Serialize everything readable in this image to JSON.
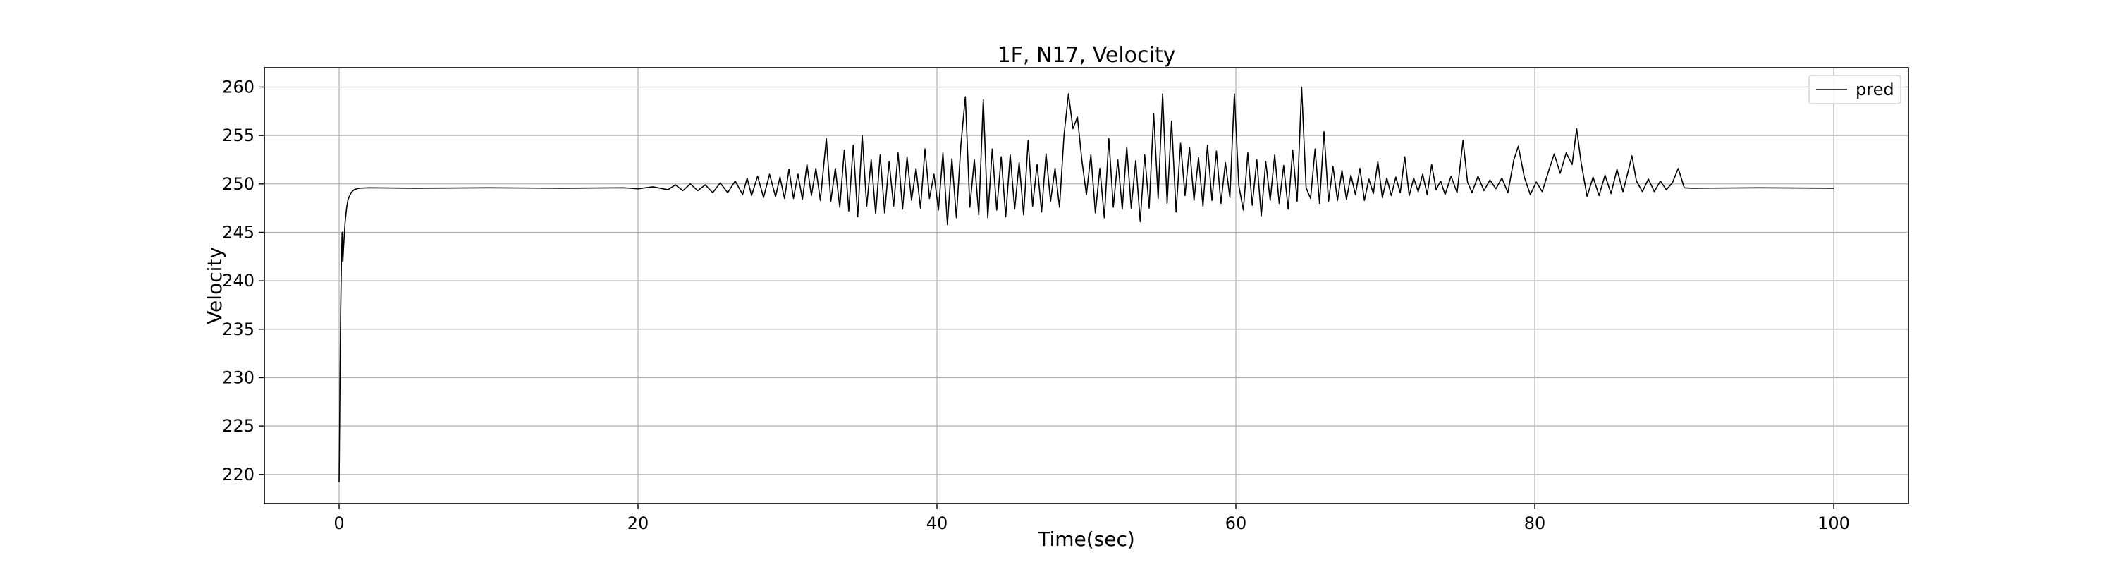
{
  "chart_data": {
    "type": "line",
    "title": "1F, N17, Velocity",
    "xlabel": "Time(sec)",
    "ylabel": "Velocity",
    "xlim": [
      -5,
      105
    ],
    "ylim": [
      217,
      262
    ],
    "x_ticks": [
      0,
      20,
      40,
      60,
      80,
      100
    ],
    "y_ticks": [
      220,
      225,
      230,
      235,
      240,
      245,
      250,
      255,
      260
    ],
    "grid": true,
    "legend": {
      "position": "top-right",
      "entries": [
        "pred"
      ]
    },
    "series": [
      {
        "name": "pred",
        "color": "#000000",
        "points": [
          [
            0.0,
            219.2
          ],
          [
            0.05,
            228.0
          ],
          [
            0.1,
            236.5
          ],
          [
            0.15,
            241.5
          ],
          [
            0.2,
            245.0
          ],
          [
            0.25,
            242.0
          ],
          [
            0.3,
            243.5
          ],
          [
            0.4,
            246.0
          ],
          [
            0.5,
            247.5
          ],
          [
            0.6,
            248.4
          ],
          [
            0.8,
            249.1
          ],
          [
            1.0,
            249.4
          ],
          [
            1.3,
            249.55
          ],
          [
            2.0,
            249.6
          ],
          [
            5.0,
            249.55
          ],
          [
            10.0,
            249.6
          ],
          [
            15.0,
            249.55
          ],
          [
            19.0,
            249.6
          ],
          [
            20.0,
            249.5
          ],
          [
            21.0,
            249.7
          ],
          [
            22.0,
            249.4
          ],
          [
            22.5,
            249.9
          ],
          [
            23.0,
            249.3
          ],
          [
            23.5,
            250.0
          ],
          [
            24.0,
            249.3
          ],
          [
            24.5,
            249.9
          ],
          [
            25.0,
            249.1
          ],
          [
            25.5,
            250.1
          ],
          [
            26.0,
            249.1
          ],
          [
            26.5,
            250.3
          ],
          [
            27.0,
            248.9
          ],
          [
            27.3,
            250.6
          ],
          [
            27.6,
            248.8
          ],
          [
            28.0,
            250.8
          ],
          [
            28.4,
            248.6
          ],
          [
            28.8,
            251.0
          ],
          [
            29.2,
            248.7
          ],
          [
            29.5,
            250.7
          ],
          [
            29.8,
            248.5
          ],
          [
            30.1,
            251.5
          ],
          [
            30.4,
            248.5
          ],
          [
            30.7,
            251.0
          ],
          [
            31.0,
            248.4
          ],
          [
            31.3,
            252.0
          ],
          [
            31.6,
            248.8
          ],
          [
            31.9,
            251.6
          ],
          [
            32.2,
            248.3
          ],
          [
            32.6,
            254.7
          ],
          [
            32.9,
            248.2
          ],
          [
            33.2,
            251.6
          ],
          [
            33.5,
            247.6
          ],
          [
            33.8,
            253.5
          ],
          [
            34.1,
            247.2
          ],
          [
            34.4,
            254.0
          ],
          [
            34.7,
            246.6
          ],
          [
            35.0,
            255.0
          ],
          [
            35.3,
            247.7
          ],
          [
            35.6,
            252.5
          ],
          [
            35.9,
            246.9
          ],
          [
            36.2,
            253.0
          ],
          [
            36.5,
            247.0
          ],
          [
            36.8,
            252.3
          ],
          [
            37.1,
            247.7
          ],
          [
            37.4,
            253.2
          ],
          [
            37.7,
            247.4
          ],
          [
            38.0,
            252.8
          ],
          [
            38.3,
            248.3
          ],
          [
            38.6,
            251.6
          ],
          [
            38.9,
            247.5
          ],
          [
            39.2,
            253.6
          ],
          [
            39.5,
            248.5
          ],
          [
            39.8,
            251.0
          ],
          [
            40.1,
            247.3
          ],
          [
            40.4,
            253.2
          ],
          [
            40.7,
            245.8
          ],
          [
            41.0,
            252.6
          ],
          [
            41.3,
            246.5
          ],
          [
            41.6,
            254.0
          ],
          [
            41.9,
            259.0
          ],
          [
            42.2,
            247.6
          ],
          [
            42.5,
            252.5
          ],
          [
            42.8,
            246.8
          ],
          [
            43.1,
            258.7
          ],
          [
            43.4,
            246.5
          ],
          [
            43.7,
            253.6
          ],
          [
            44.0,
            247.3
          ],
          [
            44.3,
            252.8
          ],
          [
            44.6,
            246.6
          ],
          [
            44.9,
            253.0
          ],
          [
            45.2,
            247.4
          ],
          [
            45.5,
            252.2
          ],
          [
            45.8,
            246.8
          ],
          [
            46.1,
            254.5
          ],
          [
            46.4,
            247.7
          ],
          [
            46.7,
            252.0
          ],
          [
            47.0,
            247.1
          ],
          [
            47.3,
            253.1
          ],
          [
            47.6,
            248.2
          ],
          [
            47.9,
            251.6
          ],
          [
            48.2,
            247.6
          ],
          [
            48.5,
            255.0
          ],
          [
            48.8,
            259.3
          ],
          [
            49.1,
            255.7
          ],
          [
            49.4,
            256.9
          ],
          [
            49.7,
            252.4
          ],
          [
            50.0,
            248.9
          ],
          [
            50.3,
            253.0
          ],
          [
            50.6,
            247.0
          ],
          [
            50.9,
            251.6
          ],
          [
            51.2,
            246.5
          ],
          [
            51.5,
            254.7
          ],
          [
            51.8,
            247.6
          ],
          [
            52.1,
            252.5
          ],
          [
            52.4,
            247.4
          ],
          [
            52.7,
            253.8
          ],
          [
            53.0,
            247.5
          ],
          [
            53.3,
            252.4
          ],
          [
            53.6,
            246.1
          ],
          [
            53.9,
            253.0
          ],
          [
            54.2,
            247.5
          ],
          [
            54.5,
            257.3
          ],
          [
            54.8,
            248.5
          ],
          [
            55.1,
            259.3
          ],
          [
            55.4,
            248.0
          ],
          [
            55.7,
            256.5
          ],
          [
            56.0,
            247.1
          ],
          [
            56.3,
            254.2
          ],
          [
            56.6,
            248.8
          ],
          [
            56.9,
            253.8
          ],
          [
            57.2,
            248.3
          ],
          [
            57.5,
            252.7
          ],
          [
            57.8,
            247.7
          ],
          [
            58.1,
            254.0
          ],
          [
            58.4,
            248.3
          ],
          [
            58.7,
            253.4
          ],
          [
            59.0,
            248.0
          ],
          [
            59.3,
            252.2
          ],
          [
            59.6,
            248.6
          ],
          [
            59.9,
            259.3
          ],
          [
            60.2,
            249.8
          ],
          [
            60.5,
            247.3
          ],
          [
            60.8,
            253.2
          ],
          [
            61.1,
            247.8
          ],
          [
            61.4,
            252.5
          ],
          [
            61.7,
            246.7
          ],
          [
            62.0,
            252.3
          ],
          [
            62.3,
            248.3
          ],
          [
            62.6,
            253.0
          ],
          [
            62.9,
            248.0
          ],
          [
            63.2,
            251.9
          ],
          [
            63.5,
            247.4
          ],
          [
            63.8,
            253.5
          ],
          [
            64.1,
            248.2
          ],
          [
            64.4,
            260.0
          ],
          [
            64.7,
            249.6
          ],
          [
            65.0,
            248.5
          ],
          [
            65.3,
            253.6
          ],
          [
            65.6,
            248.0
          ],
          [
            65.9,
            255.4
          ],
          [
            66.2,
            248.2
          ],
          [
            66.5,
            251.8
          ],
          [
            66.8,
            248.3
          ],
          [
            67.1,
            251.4
          ],
          [
            67.4,
            248.4
          ],
          [
            67.7,
            250.9
          ],
          [
            68.0,
            248.9
          ],
          [
            68.3,
            251.6
          ],
          [
            68.6,
            248.3
          ],
          [
            68.9,
            250.5
          ],
          [
            69.2,
            249.0
          ],
          [
            69.5,
            252.3
          ],
          [
            69.8,
            248.6
          ],
          [
            70.1,
            250.6
          ],
          [
            70.4,
            248.8
          ],
          [
            70.7,
            250.7
          ],
          [
            71.0,
            249.1
          ],
          [
            71.3,
            252.8
          ],
          [
            71.6,
            248.8
          ],
          [
            71.9,
            250.6
          ],
          [
            72.2,
            249.2
          ],
          [
            72.5,
            251.0
          ],
          [
            72.8,
            248.9
          ],
          [
            73.1,
            252.0
          ],
          [
            73.4,
            249.4
          ],
          [
            73.7,
            250.3
          ],
          [
            74.0,
            248.9
          ],
          [
            74.4,
            250.8
          ],
          [
            74.8,
            249.1
          ],
          [
            75.2,
            254.5
          ],
          [
            75.5,
            250.2
          ],
          [
            75.8,
            249.1
          ],
          [
            76.2,
            250.8
          ],
          [
            76.6,
            249.3
          ],
          [
            77.0,
            250.4
          ],
          [
            77.4,
            249.5
          ],
          [
            77.8,
            250.6
          ],
          [
            78.2,
            249.1
          ],
          [
            78.6,
            252.5
          ],
          [
            78.9,
            253.9
          ],
          [
            79.3,
            250.7
          ],
          [
            79.7,
            248.9
          ],
          [
            80.1,
            250.2
          ],
          [
            80.5,
            249.2
          ],
          [
            80.9,
            251.2
          ],
          [
            81.3,
            253.1
          ],
          [
            81.7,
            251.1
          ],
          [
            82.1,
            253.2
          ],
          [
            82.5,
            252.0
          ],
          [
            82.8,
            255.7
          ],
          [
            83.1,
            252.2
          ],
          [
            83.5,
            248.7
          ],
          [
            83.9,
            250.7
          ],
          [
            84.3,
            248.8
          ],
          [
            84.7,
            250.9
          ],
          [
            85.1,
            249.0
          ],
          [
            85.5,
            251.5
          ],
          [
            85.9,
            249.2
          ],
          [
            86.2,
            251.0
          ],
          [
            86.5,
            252.9
          ],
          [
            86.8,
            250.3
          ],
          [
            87.2,
            249.2
          ],
          [
            87.6,
            250.5
          ],
          [
            88.0,
            249.2
          ],
          [
            88.4,
            250.3
          ],
          [
            88.8,
            249.4
          ],
          [
            89.2,
            250.1
          ],
          [
            89.6,
            251.6
          ],
          [
            90.0,
            249.6
          ],
          [
            90.5,
            249.55
          ],
          [
            95.0,
            249.6
          ],
          [
            100.0,
            249.55
          ]
        ]
      }
    ]
  }
}
